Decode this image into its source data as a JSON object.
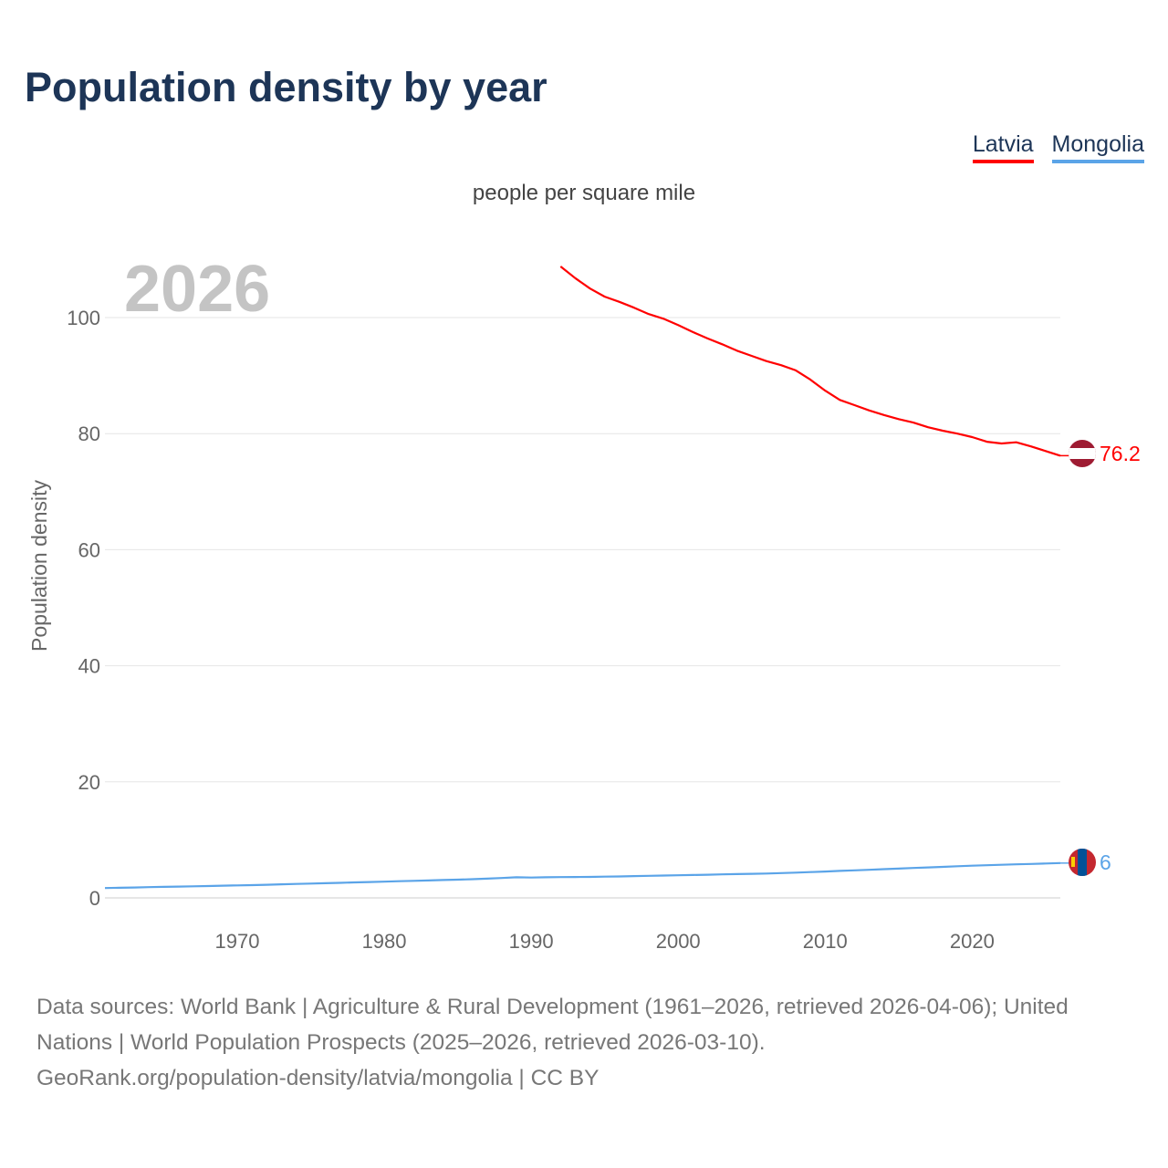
{
  "title": "Population density by year",
  "legend": [
    {
      "label": "Latvia",
      "color": "#ff0000"
    },
    {
      "label": "Mongolia",
      "color": "#5ba4e8"
    }
  ],
  "footer": {
    "sources": "Data sources: World Bank | Agriculture & Rural Development (1961–2026, retrieved 2026-04-06); United Nations | World Population Prospects (2025–2026, retrieved 2026-03-10).",
    "link": "GeoRank.org/population-density/latvia/mongolia | CC BY"
  },
  "chart_data": {
    "type": "line",
    "title": "Population density by year",
    "subtitle": "people per square mile",
    "ylabel": "Population density",
    "xlabel": "",
    "year_label": "2026",
    "xlim": [
      1961,
      2026
    ],
    "ylim": [
      0,
      100
    ],
    "x_ticks": [
      "1970",
      "1980",
      "1990",
      "2000",
      "2010",
      "2020"
    ],
    "y_ticks": [
      "0",
      "20",
      "40",
      "60",
      "80",
      "100"
    ],
    "grid": true,
    "legend_position": "top-right",
    "series": [
      {
        "name": "Latvia",
        "color": "#ff0000",
        "end_label": "76.2",
        "x_start": 1992,
        "values": [
          108.8,
          106.8,
          105.0,
          103.6,
          102.7,
          101.7,
          100.6,
          99.8,
          98.7,
          97.5,
          96.4,
          95.4,
          94.3,
          93.4,
          92.5,
          91.8,
          90.9,
          89.3,
          87.4,
          85.8,
          84.9,
          84.0,
          83.2,
          82.5,
          81.9,
          81.1,
          80.5,
          80.0,
          79.4,
          78.6,
          78.3,
          78.5,
          77.8,
          77.0,
          76.2
        ]
      },
      {
        "name": "Mongolia",
        "color": "#5ba4e8",
        "end_label": "6",
        "x_start": 1961,
        "values": [
          1.7,
          1.75,
          1.8,
          1.85,
          1.9,
          1.95,
          2.0,
          2.05,
          2.1,
          2.15,
          2.2,
          2.27,
          2.34,
          2.4,
          2.47,
          2.53,
          2.6,
          2.67,
          2.73,
          2.8,
          2.87,
          2.94,
          3.01,
          3.08,
          3.15,
          3.23,
          3.32,
          3.42,
          3.55,
          3.5,
          3.55,
          3.58,
          3.6,
          3.62,
          3.66,
          3.7,
          3.75,
          3.8,
          3.85,
          3.9,
          3.95,
          4.0,
          4.05,
          4.1,
          4.15,
          4.2,
          4.27,
          4.35,
          4.45,
          4.55,
          4.65,
          4.75,
          4.85,
          4.95,
          5.05,
          5.15,
          5.25,
          5.35,
          5.45,
          5.55,
          5.63,
          5.7,
          5.78,
          5.85,
          5.92,
          6.0
        ]
      }
    ]
  }
}
